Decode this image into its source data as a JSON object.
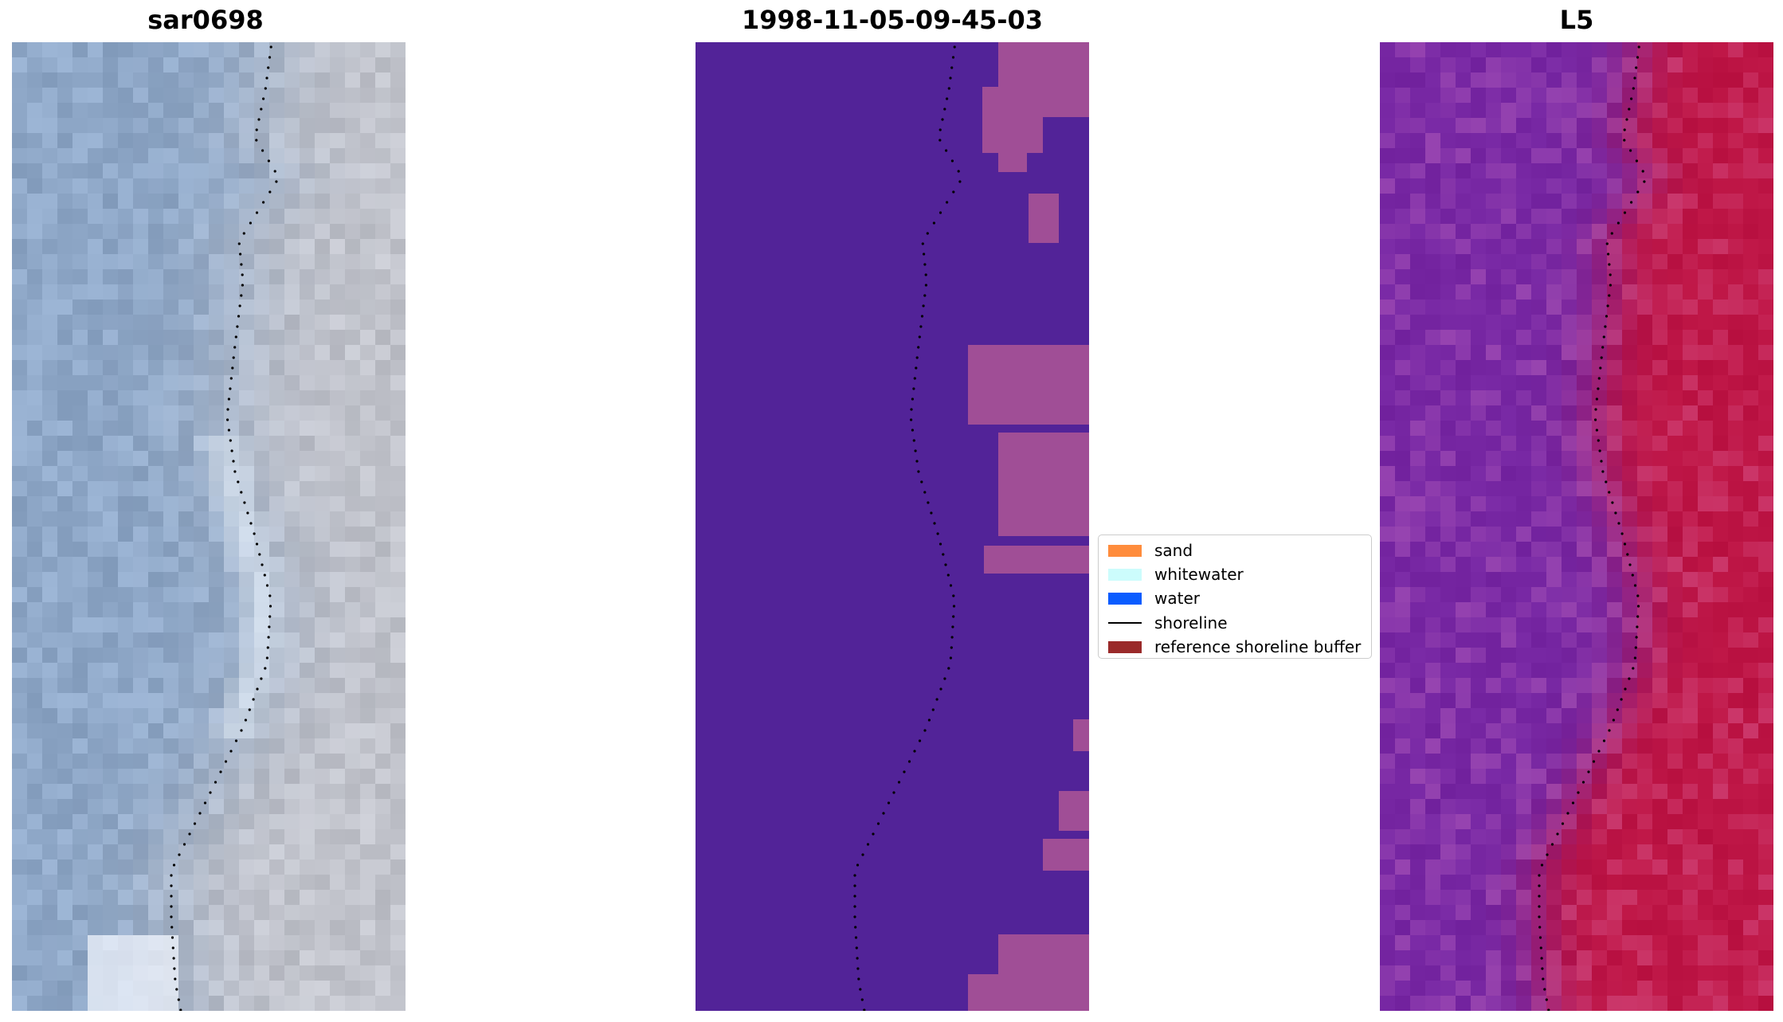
{
  "panels": [
    {
      "title": "sar0698",
      "kind": "rgb-image"
    },
    {
      "title": "1998-11-05-09-45-03",
      "kind": "classification"
    },
    {
      "title": "L5",
      "kind": "index-image"
    }
  ],
  "legend": {
    "placement": "center, between middle and right panels",
    "items": [
      {
        "label": "sand",
        "color": "#ff8c3c",
        "type": "patch"
      },
      {
        "label": "whitewater",
        "color": "#ccfcfc",
        "type": "patch"
      },
      {
        "label": "water",
        "color": "#0a5cff",
        "type": "patch"
      },
      {
        "label": "shoreline",
        "color": "#000000",
        "type": "line"
      },
      {
        "label": "reference shoreline buffer",
        "color": "#9a2a2a",
        "type": "patch"
      }
    ]
  },
  "colors": {
    "classification_background": "#522398",
    "classification_land": "#a04e96",
    "sar_water": "#8fa8c8",
    "sar_land": "#c2c4cc",
    "l5_water": "#7a2aa6",
    "l5_land": "#c01848",
    "shoreline_dots": "#000000"
  }
}
